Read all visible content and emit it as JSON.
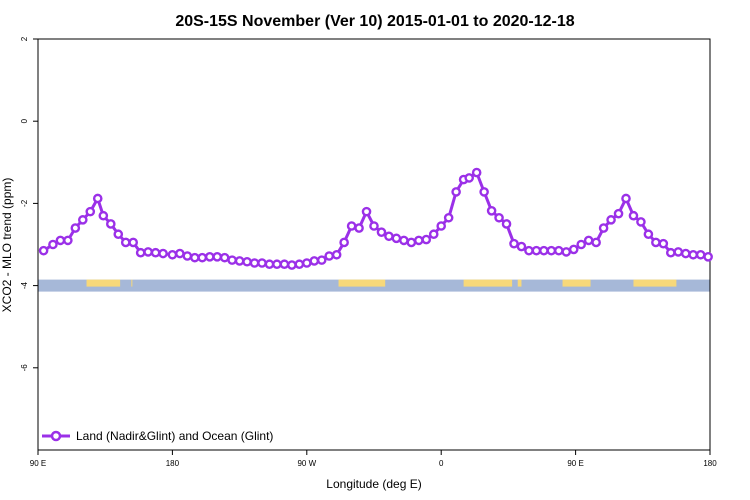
{
  "chart_data": {
    "type": "line",
    "title": "20S-15S November (Ver 10)   2015-01-01 to 2020-12-18",
    "xlabel": "Longitude (deg E)",
    "ylabel": "XCO2 - MLO trend (ppm)",
    "xlim": [
      90,
      450
    ],
    "ylim": [
      -8,
      2
    ],
    "x_ticks": [
      {
        "value": 90,
        "label": "90 E"
      },
      {
        "value": 162,
        "label": "180"
      },
      {
        "value": 234,
        "label": "90 W"
      },
      {
        "value": 306,
        "label": "0"
      },
      {
        "value": 378,
        "label": "90 E"
      },
      {
        "value": 450,
        "label": "180"
      }
    ],
    "y_ticks": [
      {
        "value": 2,
        "label": "2"
      },
      {
        "value": 0,
        "label": "0"
      },
      {
        "value": -2,
        "label": "-2"
      },
      {
        "value": -4,
        "label": "-4"
      },
      {
        "value": -6,
        "label": "-6"
      }
    ],
    "series": [
      {
        "name": "Land (Nadir&Glint) and Ocean (Glint)",
        "color": "#9b30e8",
        "x": [
          93,
          98,
          102,
          106,
          110,
          114,
          118,
          122,
          125,
          129,
          133,
          137,
          141,
          145,
          149,
          153,
          157,
          162,
          166,
          170,
          174,
          178,
          182,
          186,
          190,
          194,
          198,
          202,
          206,
          210,
          214,
          218,
          222,
          226,
          230,
          234,
          238,
          242,
          246,
          250,
          254,
          258,
          262,
          266,
          270,
          274,
          278,
          282,
          286,
          290,
          294,
          298,
          302,
          306,
          310,
          314,
          318,
          321,
          325,
          329,
          333,
          337,
          341,
          345,
          349,
          353,
          357,
          361,
          365,
          369,
          373,
          377,
          381,
          385,
          389,
          393,
          397,
          401,
          405,
          409,
          413,
          417,
          421,
          425,
          429,
          433,
          437,
          441,
          445,
          449
        ],
        "y": [
          -3.15,
          -3.0,
          -2.9,
          -2.9,
          -2.6,
          -2.4,
          -2.2,
          -1.88,
          -2.3,
          -2.5,
          -2.75,
          -2.95,
          -2.95,
          -3.2,
          -3.18,
          -3.2,
          -3.22,
          -3.25,
          -3.22,
          -3.28,
          -3.32,
          -3.32,
          -3.3,
          -3.3,
          -3.32,
          -3.38,
          -3.4,
          -3.42,
          -3.45,
          -3.45,
          -3.48,
          -3.48,
          -3.48,
          -3.5,
          -3.48,
          -3.45,
          -3.4,
          -3.38,
          -3.28,
          -3.25,
          -2.95,
          -2.55,
          -2.6,
          -2.2,
          -2.55,
          -2.7,
          -2.8,
          -2.85,
          -2.9,
          -2.95,
          -2.9,
          -2.88,
          -2.75,
          -2.55,
          -2.35,
          -1.72,
          -1.42,
          -1.38,
          -1.25,
          -1.72,
          -2.18,
          -2.35,
          -2.5,
          -2.98,
          -3.05,
          -3.15,
          -3.15,
          -3.15,
          -3.15,
          -3.15,
          -3.18,
          -3.12,
          -3.0,
          -2.9,
          -2.95,
          -2.6,
          -2.4,
          -2.25,
          -1.88,
          -2.3,
          -2.45,
          -2.75,
          -2.95,
          -2.98,
          -3.2,
          -3.18,
          -3.22,
          -3.25,
          -3.25,
          -3.3
        ]
      }
    ],
    "surface_band": {
      "y": -4,
      "ocean_color": "#a6b8d8",
      "land_color": "#f7d87a",
      "land_ranges": [
        [
          116,
          134
        ],
        [
          140,
          140.5
        ],
        [
          251,
          276
        ],
        [
          318,
          344
        ],
        [
          347,
          349
        ],
        [
          371,
          386
        ],
        [
          409,
          432
        ]
      ]
    },
    "legend": {
      "position": "bottom-left",
      "entries": [
        "Land (Nadir&Glint) and Ocean (Glint)"
      ]
    }
  }
}
